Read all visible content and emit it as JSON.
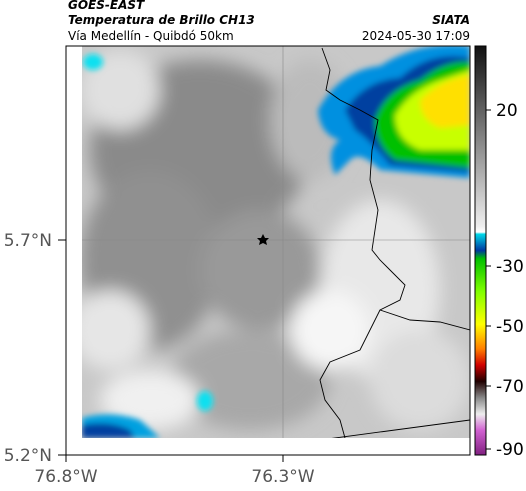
{
  "header": {
    "title": "GOES-EAST",
    "subtitle": "Temperatura de Brillo CH13",
    "location": "Vía Medellín - Quibdó 50km",
    "source": "SIATA",
    "datetime": "2024-05-30 17:09"
  },
  "axes": {
    "y_ticks": [
      "5.7°N",
      "5.2°N"
    ],
    "x_ticks": [
      "76.8°W",
      "76.3°W"
    ]
  },
  "colorbar": {
    "ticks": [
      20,
      -30,
      -50,
      -70,
      -90
    ]
  }
}
